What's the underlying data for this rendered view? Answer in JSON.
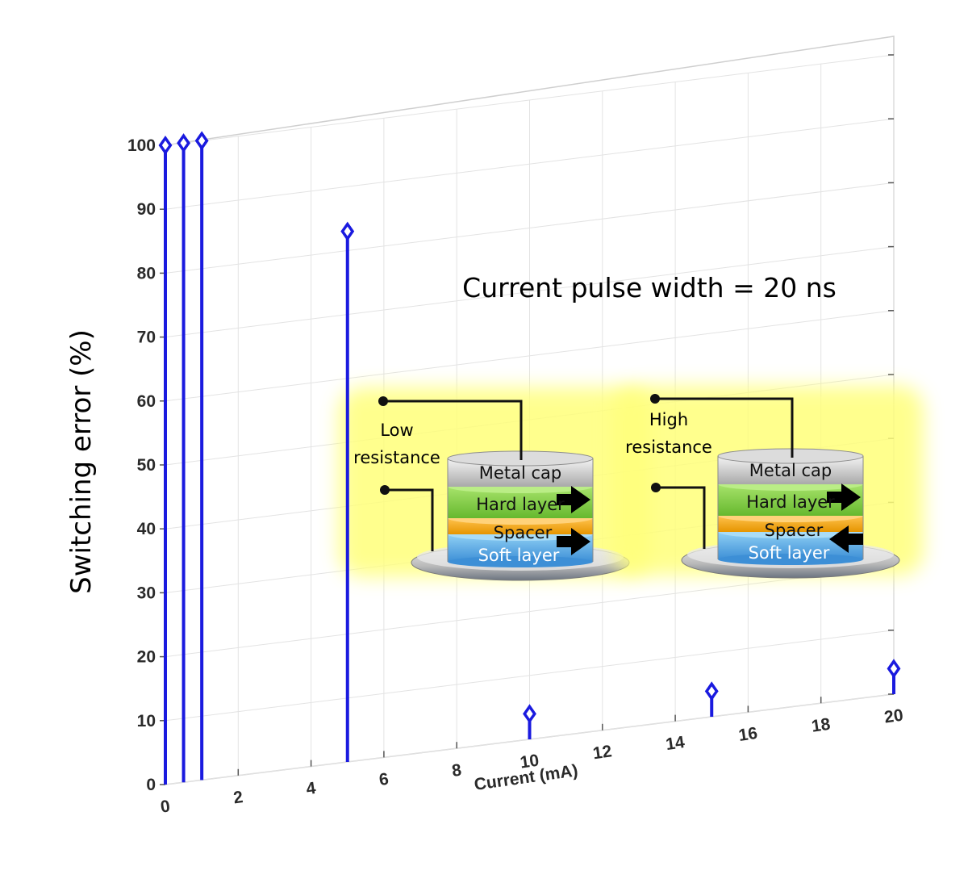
{
  "chart_data": {
    "type": "stem",
    "ylabel": "Switching error (%)",
    "xlabel": "Current (mA)",
    "xlim": [
      0,
      20
    ],
    "ylim": [
      0,
      100
    ],
    "xticks": [
      "0",
      "2",
      "4",
      "6",
      "8",
      "10",
      "12",
      "14",
      "16",
      "18",
      "20"
    ],
    "yticks": [
      "0",
      "10",
      "20",
      "30",
      "40",
      "50",
      "60",
      "70",
      "80",
      "90",
      "100"
    ],
    "grid": true,
    "marker": "diamond",
    "series_color": "#1a1adf",
    "x": [
      0,
      0.5,
      1,
      5,
      10,
      15,
      20
    ],
    "y": [
      100,
      100,
      100,
      83,
      4,
      4,
      4
    ],
    "annotation": "Current pulse width = 20 ns"
  },
  "inset": {
    "left": {
      "resistance_line1": "Low",
      "resistance_line2": "resistance",
      "metal_cap": "Metal cap",
      "hard_layer": "Hard layer",
      "spacer": "Spacer",
      "soft_layer": "Soft layer",
      "hard_arrow": "right",
      "soft_arrow": "right"
    },
    "right": {
      "resistance_line1": "High",
      "resistance_line2": "resistance",
      "metal_cap": "Metal cap",
      "hard_layer": "Hard layer",
      "spacer": "Spacer",
      "soft_layer": "Soft layer",
      "hard_arrow": "right",
      "soft_arrow": "left"
    }
  }
}
